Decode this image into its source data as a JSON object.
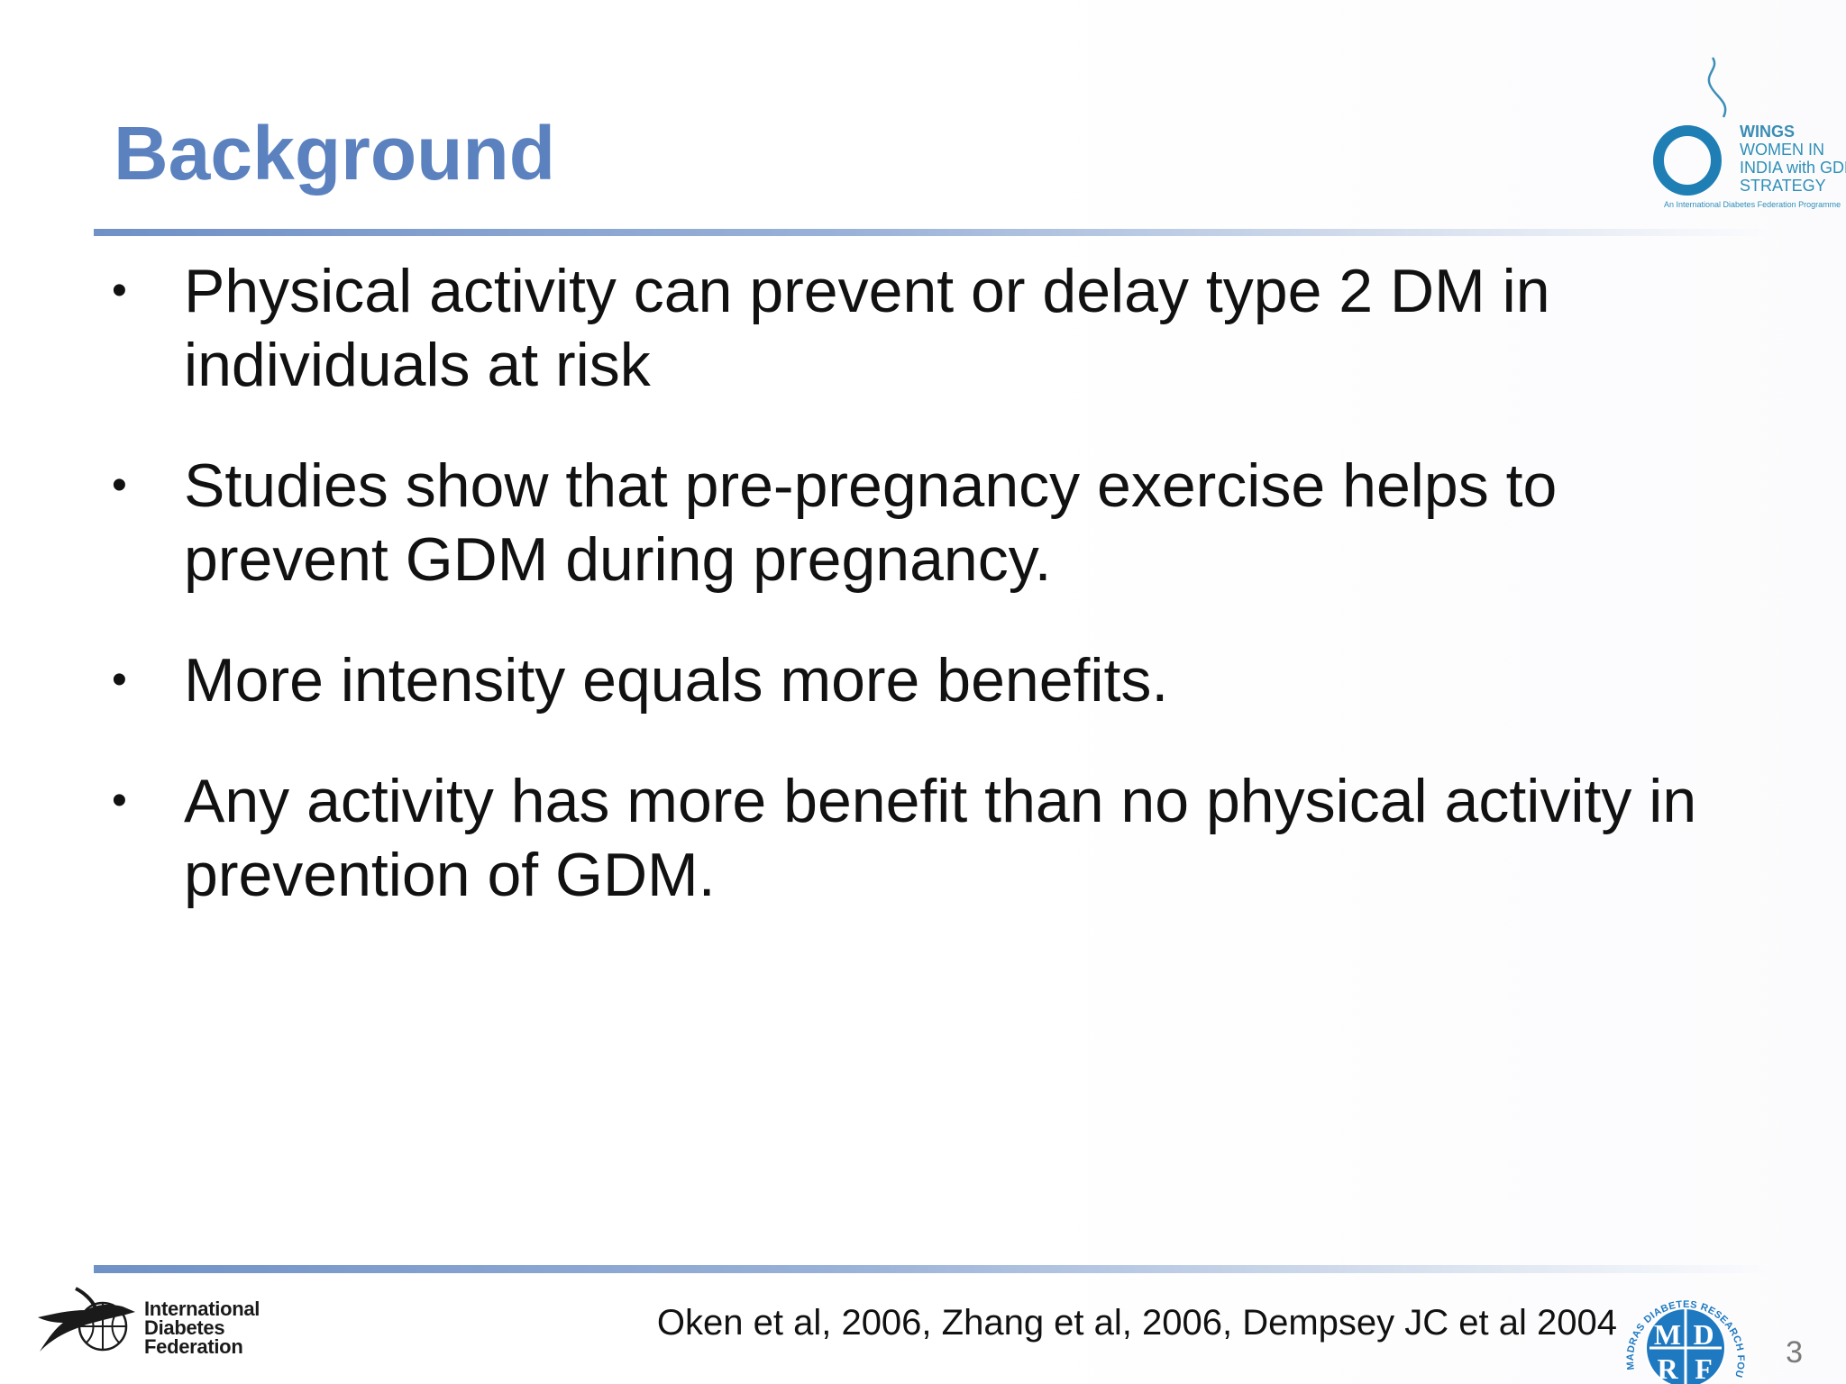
{
  "slide": {
    "title": "Background",
    "bullet_symbol": "•",
    "bullets": [
      "Physical activity can prevent or delay type 2 DM in individuals at risk",
      "Studies show that pre-pregnancy exercise helps to prevent GDM during pregnancy.",
      "More intensity equals more benefits.",
      "Any activity has more benefit than no physical activity in prevention of GDM."
    ],
    "citation": "Oken et al, 2006, Zhang et al, 2006, Dempsey JC et al 2004",
    "page_number": "3"
  },
  "logos": {
    "wings": {
      "lines": [
        "WINGS",
        "WOMEN IN",
        "INDIA with GDM",
        "STRATEGY"
      ],
      "subtitle": "An International Diabetes Federation Programme",
      "color": "#2f8fb7"
    },
    "idf": {
      "lines": [
        "International",
        "Diabetes",
        "Federation"
      ]
    },
    "mdrf": {
      "ring_text": "MADRAS DIABETES RESEARCH FOUNDATION",
      "letters": [
        "M",
        "D",
        "R",
        "F"
      ],
      "color": "#1f79c0"
    }
  },
  "colors": {
    "title": "#5b82bf",
    "rule": "#6f91c6",
    "text": "#111111"
  }
}
